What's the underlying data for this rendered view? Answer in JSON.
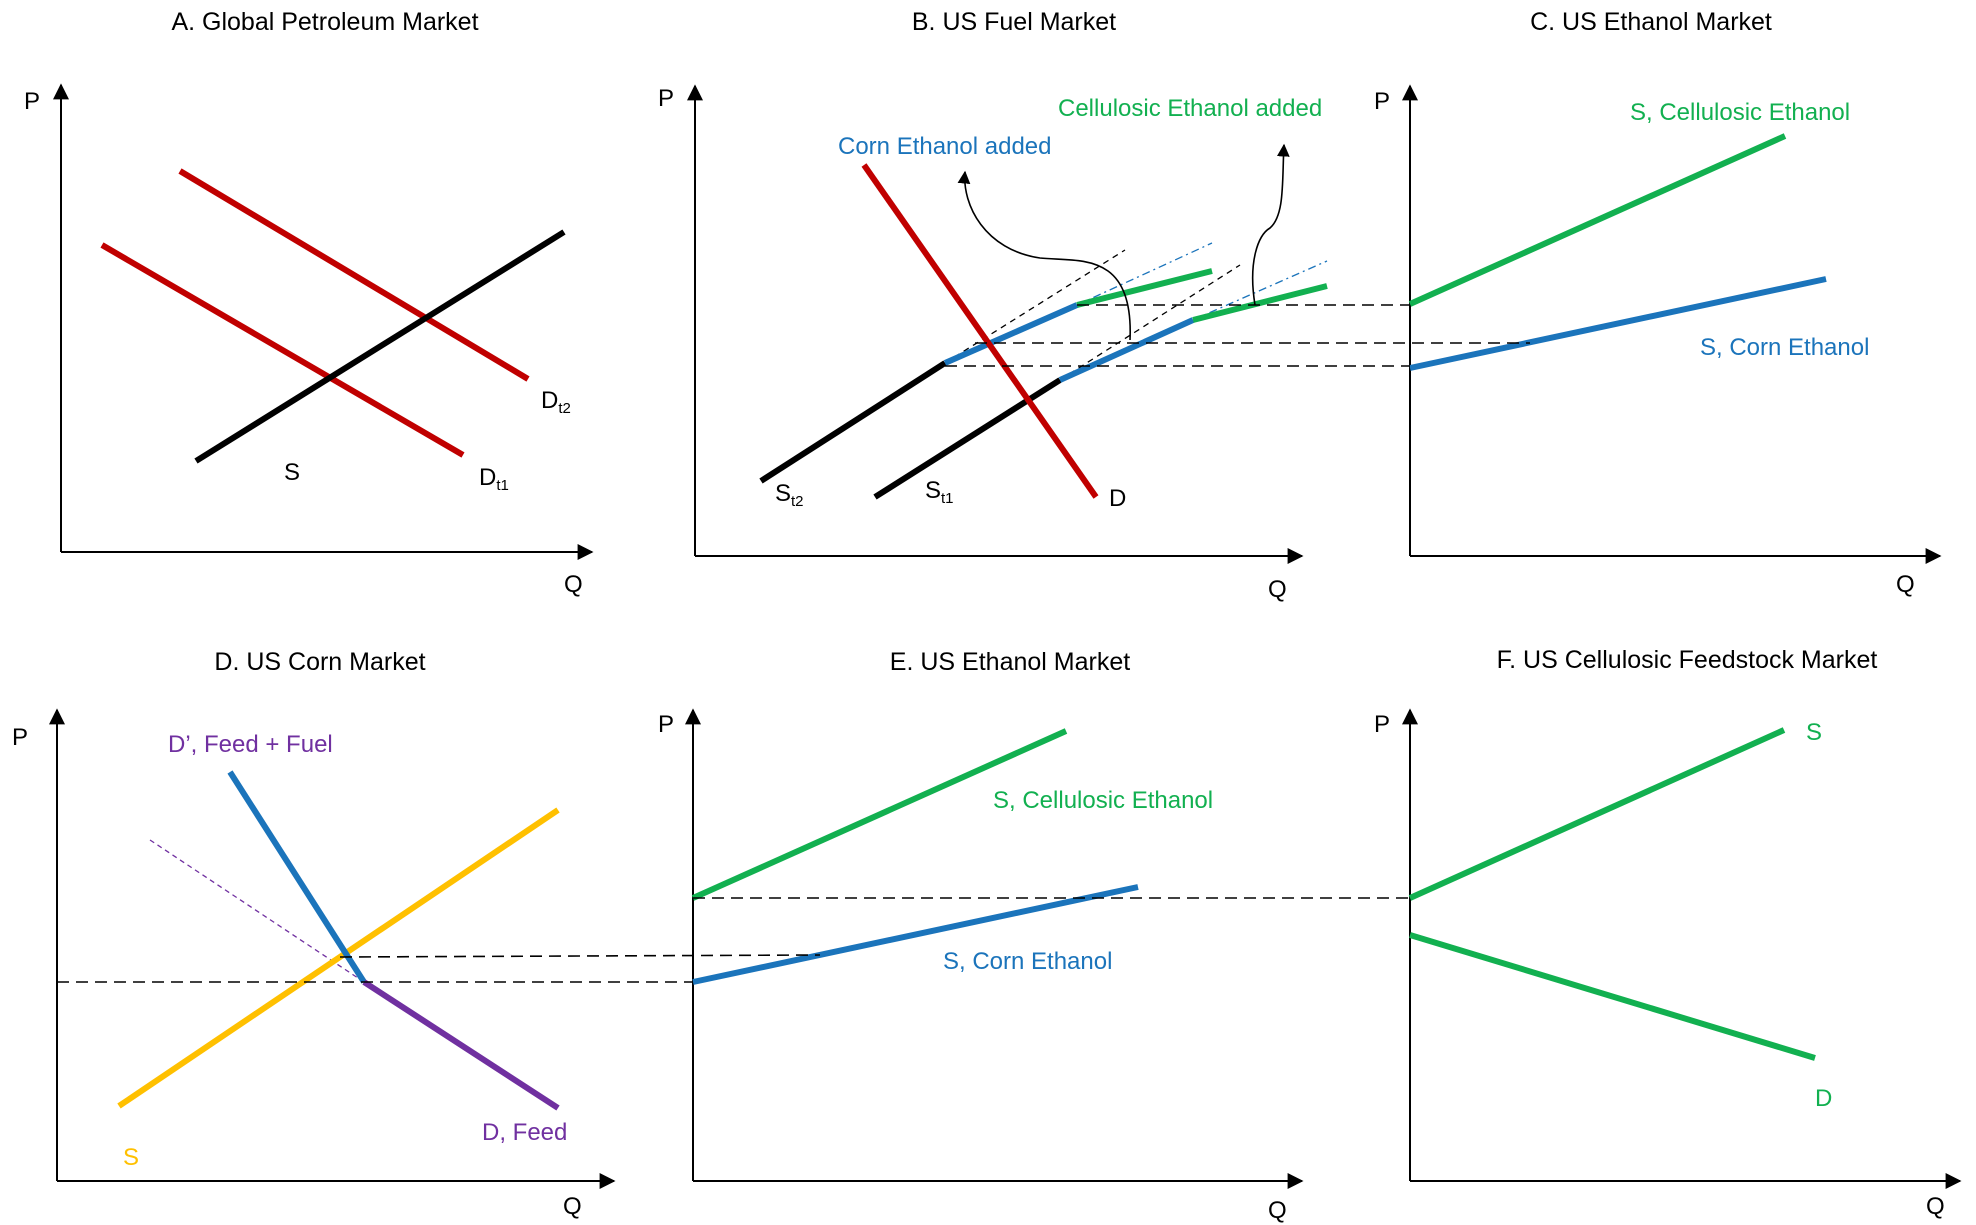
{
  "colors": {
    "red": "#c00000",
    "black": "#000000",
    "blue": "#1b74bb",
    "green": "#12b050",
    "yellow": "#ffc000",
    "purple": "#7030a0"
  },
  "panels": {
    "a": {
      "title": "A. Global Petroleum Market",
      "y_axis": "P",
      "x_axis": "Q",
      "supply": "S",
      "demand_t1": "D",
      "demand_t1_sub": "t1",
      "demand_t2": "D",
      "demand_t2_sub": "t2"
    },
    "b": {
      "title": "B. US Fuel Market",
      "y_axis": "P",
      "x_axis": "Q",
      "corn_added": "Corn Ethanol added",
      "cellulosic_added": "Cellulosic Ethanol added",
      "supply_t1": "S",
      "supply_t1_sub": "t1",
      "supply_t2": "S",
      "supply_t2_sub": "t2",
      "demand": "D"
    },
    "c": {
      "title": "C. US Ethanol Market",
      "y_axis": "P",
      "x_axis": "Q",
      "cellulosic_supply": "S, Cellulosic Ethanol",
      "corn_supply": "S, Corn Ethanol"
    },
    "d": {
      "title": "D. US Corn Market",
      "y_axis": "P",
      "x_axis": "Q",
      "demand_feed_fuel": "D’, Feed + Fuel",
      "demand_feed": "D, Feed",
      "supply": "S"
    },
    "e": {
      "title": "E. US Ethanol Market",
      "y_axis": "P",
      "x_axis": "Q",
      "cellulosic_supply": "S, Cellulosic Ethanol",
      "corn_supply": "S, Corn Ethanol"
    },
    "f": {
      "title": "F. US Cellulosic Feedstock Market",
      "y_axis": "P",
      "x_axis": "Q",
      "supply": "S",
      "demand": "D"
    }
  }
}
